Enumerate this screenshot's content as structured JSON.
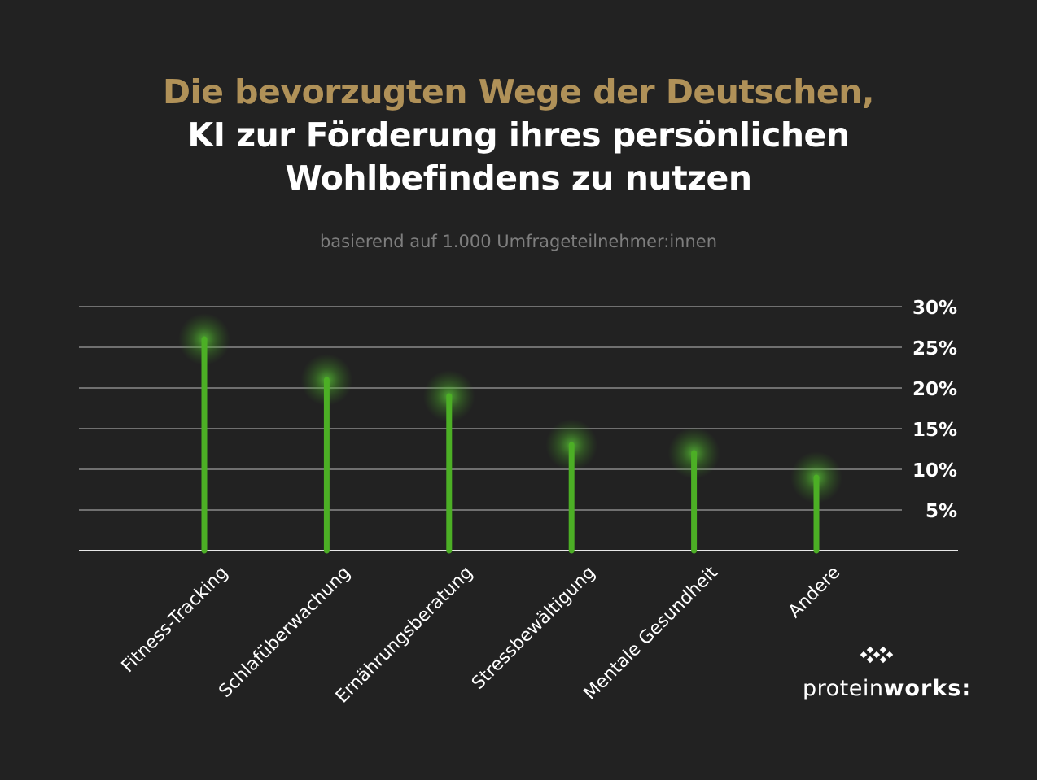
{
  "title": {
    "line1": "Die bevorzugten Wege der Deutschen,",
    "line2": "KI zur Förderung ihres persönlichen",
    "line3": "Wohlbefindens zu nutzen"
  },
  "subtitle": "basierend auf 1.000 Umfrageteilnehmer:innen",
  "brand": {
    "light": "protein",
    "bold": "works:",
    "icon": "dots-logo-icon"
  },
  "colors": {
    "background": "#222222",
    "title_accent": "#b09158",
    "bar": "#4caf25",
    "grid": "#8a8a8a"
  },
  "chart_data": {
    "type": "bar",
    "style": "lollipop",
    "categories": [
      "Fitness-Tracking",
      "Schlafüberwachung",
      "Ernährungsberatung",
      "Stressbewältigung",
      "Mentale Gesundheit",
      "Andere"
    ],
    "values": [
      26,
      21,
      19,
      13,
      12,
      9
    ],
    "ylim": [
      0,
      30
    ],
    "yticks": [
      5,
      10,
      15,
      20,
      25,
      30
    ],
    "ytick_labels": [
      "5%",
      "10%",
      "15%",
      "20%",
      "25%",
      "30%"
    ],
    "y_axis_position": "right",
    "grid": true,
    "xlabel": "",
    "ylabel": ""
  }
}
